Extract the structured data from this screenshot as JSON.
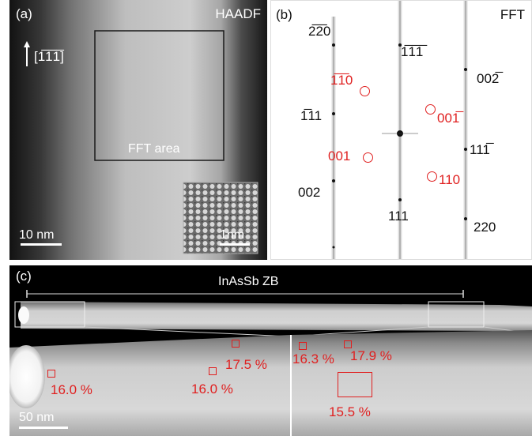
{
  "panel_a": {
    "label": "(a)",
    "mode": "HAADF",
    "direction_label": "[1̅1̅1̅]",
    "fft_area_label": "FFT area",
    "scale_main": "10 nm",
    "scale_inset": "1nm"
  },
  "panel_b": {
    "label": "(b)",
    "mode": "FFT",
    "indices_black": [
      {
        "id": "m-220b",
        "text": "2̅2̅0"
      },
      {
        "id": "m-111b1",
        "text": "1̅1̅1̅"
      },
      {
        "id": "m-002b",
        "text": "002̅"
      },
      {
        "id": "m-111b2",
        "text": "1̅11"
      },
      {
        "id": "m-11b1",
        "text": "111̅"
      },
      {
        "id": "m-002",
        "text": "002"
      },
      {
        "id": "m-111",
        "text": "111"
      },
      {
        "id": "m-220",
        "text": "220"
      }
    ],
    "indices_red": [
      {
        "id": "r-110b",
        "text": "1̅1̅0"
      },
      {
        "id": "r-001b",
        "text": "001̅"
      },
      {
        "id": "r-001",
        "text": "001"
      },
      {
        "id": "r-110",
        "text": "110"
      }
    ]
  },
  "panel_c": {
    "label": "(c)",
    "structure": "InAsSb ZB",
    "scale": "50 nm",
    "compositions": [
      "16.0 %",
      "17.5 %",
      "16.0 %",
      "16.3 %",
      "17.9 %",
      "15.5 %"
    ]
  },
  "colors": {
    "annotation_red": "#e02020"
  }
}
